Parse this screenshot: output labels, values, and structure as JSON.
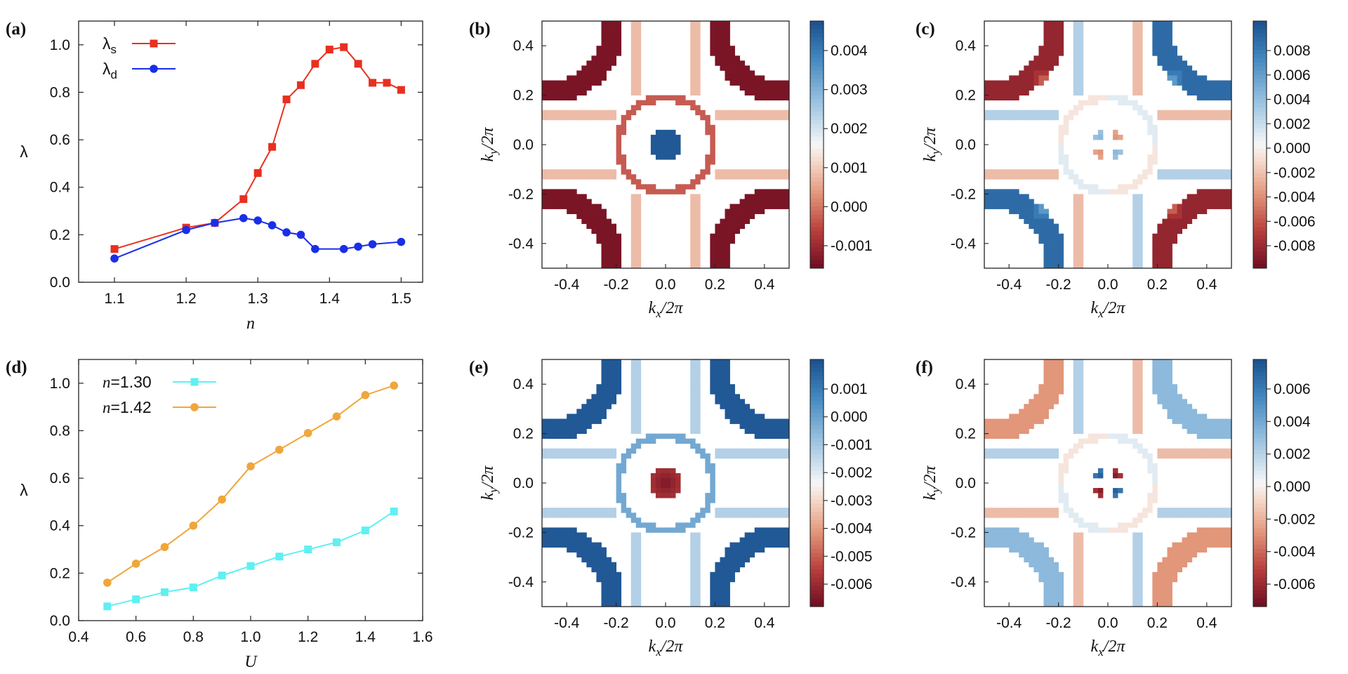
{
  "chart_data": [
    {
      "panel": "(a)",
      "type": "line",
      "xlabel": "n",
      "ylabel": "λ",
      "xlim": [
        1.05,
        1.53
      ],
      "ylim": [
        0.0,
        1.1
      ],
      "xticks": [
        1.1,
        1.2,
        1.3,
        1.4,
        1.5
      ],
      "yticks": [
        0.0,
        0.2,
        0.4,
        0.6,
        0.8,
        1.0
      ],
      "legend_position": "top-left",
      "series": [
        {
          "name": "λs",
          "name_base": "λ",
          "name_sub": "s",
          "color": "#e8301f",
          "marker": "square",
          "x": [
            1.1,
            1.2,
            1.24,
            1.28,
            1.3,
            1.32,
            1.34,
            1.36,
            1.38,
            1.4,
            1.42,
            1.44,
            1.46,
            1.48,
            1.5
          ],
          "y": [
            0.14,
            0.23,
            0.25,
            0.35,
            0.46,
            0.57,
            0.77,
            0.83,
            0.92,
            0.98,
            0.99,
            0.92,
            0.84,
            0.84,
            0.81
          ]
        },
        {
          "name": "λd",
          "name_base": "λ",
          "name_sub": "d",
          "color": "#1a2ee8",
          "marker": "circle",
          "x": [
            1.1,
            1.2,
            1.24,
            1.28,
            1.3,
            1.32,
            1.34,
            1.36,
            1.38,
            1.42,
            1.44,
            1.46,
            1.5
          ],
          "y": [
            0.1,
            0.22,
            0.25,
            0.27,
            0.26,
            0.24,
            0.21,
            0.2,
            0.14,
            0.14,
            0.15,
            0.16,
            0.17
          ]
        }
      ]
    },
    {
      "panel": "(b)",
      "type": "heatmap",
      "xlabel": "kx/2π",
      "ylabel": "ky/2π",
      "xlim": [
        -0.5,
        0.5
      ],
      "ylim": [
        -0.5,
        0.5
      ],
      "xticks": [
        -0.4,
        -0.2,
        0.0,
        0.2,
        0.4
      ],
      "yticks": [
        -0.4,
        -0.2,
        0.0,
        0.2,
        0.4
      ],
      "colorbar_ticks": [
        "0.004",
        "0.003",
        "0.002",
        "0.001",
        "0.000",
        "-0.001"
      ],
      "pattern": "s-wave"
    },
    {
      "panel": "(c)",
      "type": "heatmap",
      "xlabel": "kx/2π",
      "ylabel": "ky/2π",
      "xlim": [
        -0.5,
        0.5
      ],
      "ylim": [
        -0.5,
        0.5
      ],
      "xticks": [
        -0.4,
        -0.2,
        0.0,
        0.2,
        0.4
      ],
      "yticks": [
        -0.4,
        -0.2,
        0.0,
        0.2,
        0.4
      ],
      "colorbar_ticks": [
        "0.008",
        "0.006",
        "0.004",
        "0.002",
        "0.000",
        "-0.002",
        "-0.004",
        "-0.006",
        "-0.008"
      ],
      "pattern": "dxy-wave"
    },
    {
      "panel": "(d)",
      "type": "line",
      "xlabel": "U",
      "ylabel": "λ",
      "xlim": [
        0.4,
        1.6
      ],
      "ylim": [
        0.0,
        1.1
      ],
      "xticks": [
        0.4,
        0.6,
        0.8,
        1.0,
        1.2,
        1.4,
        1.6
      ],
      "yticks": [
        0.0,
        0.2,
        0.4,
        0.6,
        0.8,
        1.0
      ],
      "legend_position": "top-left",
      "series": [
        {
          "name": "n=1.30",
          "name_base": "n",
          "name_sub": "=1.30",
          "color": "#5ff0f2",
          "marker": "square",
          "x": [
            0.5,
            0.6,
            0.7,
            0.8,
            0.9,
            1.0,
            1.1,
            1.2,
            1.3,
            1.4,
            1.5
          ],
          "y": [
            0.06,
            0.09,
            0.12,
            0.14,
            0.19,
            0.23,
            0.27,
            0.3,
            0.33,
            0.38,
            0.46
          ]
        },
        {
          "name": "n=1.42",
          "name_base": "n",
          "name_sub": "=1.42",
          "color": "#f0a63a",
          "marker": "circle",
          "x": [
            0.5,
            0.6,
            0.7,
            0.8,
            0.9,
            1.0,
            1.1,
            1.2,
            1.3,
            1.4,
            1.5
          ],
          "y": [
            0.16,
            0.24,
            0.31,
            0.4,
            0.51,
            0.65,
            0.72,
            0.79,
            0.86,
            0.95,
            0.99
          ]
        }
      ]
    },
    {
      "panel": "(e)",
      "type": "heatmap",
      "xlabel": "kx/2π",
      "ylabel": "ky/2π",
      "xlim": [
        -0.5,
        0.5
      ],
      "ylim": [
        -0.5,
        0.5
      ],
      "xticks": [
        -0.4,
        -0.2,
        0.0,
        0.2,
        0.4
      ],
      "yticks": [
        -0.4,
        -0.2,
        0.0,
        0.2,
        0.4
      ],
      "colorbar_ticks": [
        "0.001",
        "0.000",
        "-0.001",
        "-0.002",
        "-0.003",
        "-0.004",
        "-0.005",
        "-0.006"
      ],
      "pattern": "s-wave-reversed"
    },
    {
      "panel": "(f)",
      "type": "heatmap",
      "xlabel": "kx/2π",
      "ylabel": "ky/2π",
      "xlim": [
        -0.5,
        0.5
      ],
      "ylim": [
        -0.5,
        0.5
      ],
      "xticks": [
        -0.4,
        -0.2,
        0.0,
        0.2,
        0.4
      ],
      "yticks": [
        -0.4,
        -0.2,
        0.0,
        0.2,
        0.4
      ],
      "colorbar_ticks": [
        "0.006",
        "0.004",
        "0.002",
        "0.000",
        "-0.002",
        "-0.004",
        "-0.006"
      ],
      "pattern": "dxy-wave-weak"
    }
  ],
  "colors": {
    "cmap_pos": "#1a4f8e",
    "cmap_mid": "#f7f7f7",
    "cmap_neg": "#6e0d21"
  }
}
